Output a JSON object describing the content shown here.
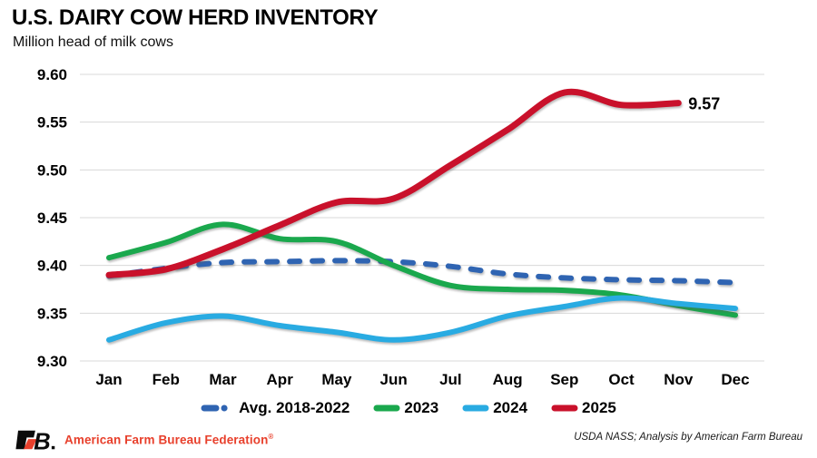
{
  "chart_data": {
    "type": "line",
    "title": "U.S. DAIRY COW HERD INVENTORY",
    "subtitle": "Million head of milk cows",
    "categories": [
      "Jan",
      "Feb",
      "Mar",
      "Apr",
      "May",
      "Jun",
      "Jul",
      "Aug",
      "Sep",
      "Oct",
      "Nov",
      "Dec"
    ],
    "ylim": [
      9.3,
      9.6
    ],
    "y_tick_labels": [
      "9.60",
      "9.55",
      "9.50",
      "9.45",
      "9.40",
      "9.35",
      "9.30"
    ],
    "grid": true,
    "legend_position": "bottom",
    "grid_color": "#d8d8d8",
    "series": [
      {
        "name": "Avg. 2018-2022",
        "color": "#2f64b2",
        "style": "dashed",
        "values": [
          9.389,
          9.397,
          9.403,
          9.404,
          9.405,
          9.404,
          9.399,
          9.391,
          9.387,
          9.385,
          9.384,
          9.382
        ]
      },
      {
        "name": "2023",
        "color": "#1aa84d",
        "style": "solid",
        "values": [
          9.408,
          9.424,
          9.443,
          9.428,
          9.425,
          9.4,
          9.379,
          9.375,
          9.374,
          9.369,
          9.358,
          9.348
        ]
      },
      {
        "name": "2024",
        "color": "#29abe2",
        "style": "solid",
        "values": [
          9.322,
          9.34,
          9.347,
          9.337,
          9.33,
          9.322,
          9.33,
          9.347,
          9.357,
          9.366,
          9.36,
          9.355
        ]
      },
      {
        "name": "2025",
        "color": "#c9112b",
        "style": "solid",
        "values": [
          9.39,
          9.396,
          9.417,
          9.442,
          9.466,
          9.47,
          9.505,
          9.542,
          9.581,
          9.568,
          9.57
        ],
        "end_label": "9.57"
      }
    ]
  },
  "footer": {
    "logo": "FB.",
    "org_name": "American Farm Bureau Federation",
    "trademark": "®",
    "source_note": "USDA NASS; Analysis by American Farm Bureau"
  }
}
